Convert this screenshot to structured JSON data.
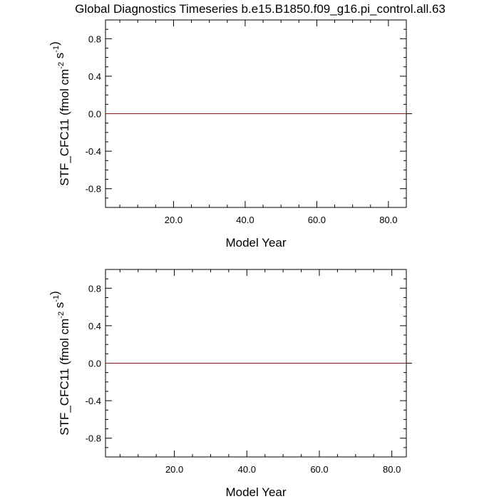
{
  "title": "Global Diagnostics Timeseries b.e15.B1850.f09_g16.pi_control.all.63",
  "chart_data": [
    {
      "type": "line",
      "xlabel": "Model Year",
      "ylabel": "STF_CFC11 (fmol cm",
      "ylabel_sup1": "-2",
      "ylabel_mid": " s",
      "ylabel_sup2": "-1",
      "ylabel_end": ")",
      "xlim": [
        1,
        85
      ],
      "ylim": [
        -1.0,
        1.0
      ],
      "xticks": [
        20,
        40,
        60,
        80
      ],
      "xtick_labels": [
        "20.0",
        "40.0",
        "60.0",
        "80.0"
      ],
      "yticks": [
        0.8,
        0.4,
        0.0,
        -0.4,
        -0.8
      ],
      "ytick_labels": [
        "0.8",
        "0.4",
        "0.0",
        "-0.4",
        "-0.8"
      ],
      "reference_line_y": 0.0,
      "series": [
        {
          "x": [
            1,
            85
          ],
          "y": [
            0.0,
            0.0
          ],
          "color": "#8b1a1a"
        }
      ]
    },
    {
      "type": "line",
      "xlabel": "Model Year",
      "ylabel": "STF_CFC11 (fmol cm",
      "ylabel_sup1": "-2",
      "ylabel_mid": " s",
      "ylabel_sup2": "-1",
      "ylabel_end": ")",
      "xlim": [
        1,
        84
      ],
      "ylim": [
        -1.0,
        1.0
      ],
      "xticks": [
        20,
        40,
        60,
        80
      ],
      "xtick_labels": [
        "20.0",
        "40.0",
        "60.0",
        "80.0"
      ],
      "yticks": [
        0.8,
        0.4,
        0.0,
        -0.4,
        -0.8
      ],
      "ytick_labels": [
        "0.8",
        "0.4",
        "0.0",
        "-0.4",
        "-0.8"
      ],
      "reference_line_y": 0.0,
      "series": [
        {
          "x": [
            1,
            84
          ],
          "y": [
            0.0,
            0.0
          ],
          "color": "#8b1a1a"
        }
      ]
    }
  ]
}
